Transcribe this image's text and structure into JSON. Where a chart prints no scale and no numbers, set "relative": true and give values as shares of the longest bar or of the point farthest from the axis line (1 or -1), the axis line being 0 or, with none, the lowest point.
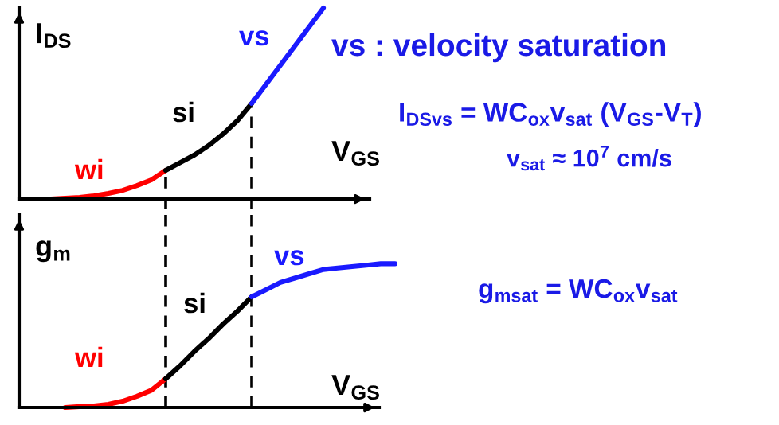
{
  "chart_data": [
    {
      "type": "line",
      "relative": true,
      "ylabel": "I$_{DS}$",
      "xlabel": "V$_{GS}$",
      "legend": false,
      "tick_labels": false,
      "categories": [
        null,
        null,
        null,
        null,
        null,
        null,
        null,
        null,
        null,
        null,
        null,
        null,
        null,
        null,
        null,
        null,
        null,
        null,
        null,
        null
      ],
      "series": [
        {
          "name": "wi",
          "color": "#ff0000",
          "values": [
            0,
            0.004,
            0.008,
            0.017,
            0.029,
            0.045,
            0.07,
            0.1,
            0.15,
            null,
            null,
            null,
            null,
            null,
            null,
            null,
            null,
            null,
            null,
            null
          ]
        },
        {
          "name": "si",
          "color": "#000000",
          "values": [
            null,
            null,
            null,
            null,
            null,
            null,
            null,
            null,
            0.15,
            0.19,
            0.23,
            0.28,
            0.34,
            0.41,
            0.5,
            null,
            null,
            null,
            null,
            null
          ]
        },
        {
          "name": "vs",
          "color": "#1a1aff",
          "values": [
            null,
            null,
            null,
            null,
            null,
            null,
            null,
            null,
            null,
            null,
            null,
            null,
            null,
            null,
            0.5,
            0.6,
            0.7,
            0.8,
            0.9,
            1.0
          ]
        }
      ],
      "annotations": [
        "vs : velocity saturation",
        "I$_{DSvs}$ = WC$_{ox}$v$_{sat}$ (V$_{GS}$-V$_{T}$)",
        "v$_{sat}$ ≈ 10$^{7}$ cm/s"
      ]
    },
    {
      "type": "line",
      "relative": true,
      "ylabel": "g$_{m}$",
      "xlabel": "V$_{GS}$",
      "legend": false,
      "tick_labels": false,
      "categories": [
        null,
        null,
        null,
        null,
        null,
        null,
        null,
        null,
        null,
        null,
        null,
        null,
        null,
        null,
        null,
        null,
        null,
        null,
        null,
        null,
        null,
        null,
        null,
        null,
        null
      ],
      "series": [
        {
          "name": "wi",
          "color": "#ff0000",
          "values": [
            null,
            0,
            0.006,
            0.011,
            0.022,
            0.044,
            0.078,
            0.12,
            0.2,
            null,
            null,
            null,
            null,
            null,
            null,
            null,
            null,
            null,
            null,
            null,
            null,
            null,
            null,
            null,
            null
          ]
        },
        {
          "name": "si",
          "color": "#000000",
          "values": [
            null,
            null,
            null,
            null,
            null,
            null,
            null,
            null,
            0.2,
            0.29,
            0.39,
            0.48,
            0.58,
            0.67,
            0.77,
            null,
            null,
            null,
            null,
            null,
            null,
            null,
            null,
            null,
            null
          ]
        },
        {
          "name": "vs",
          "color": "#1a1aff",
          "values": [
            null,
            null,
            null,
            null,
            null,
            null,
            null,
            null,
            null,
            null,
            null,
            null,
            null,
            null,
            0.77,
            0.82,
            0.87,
            0.9,
            0.93,
            0.96,
            0.97,
            0.98,
            0.99,
            1.0,
            1.0
          ]
        }
      ],
      "annotations": [
        "g$_{msat}$ = WC$_{ox}$v$_{sat}$"
      ]
    }
  ]
}
